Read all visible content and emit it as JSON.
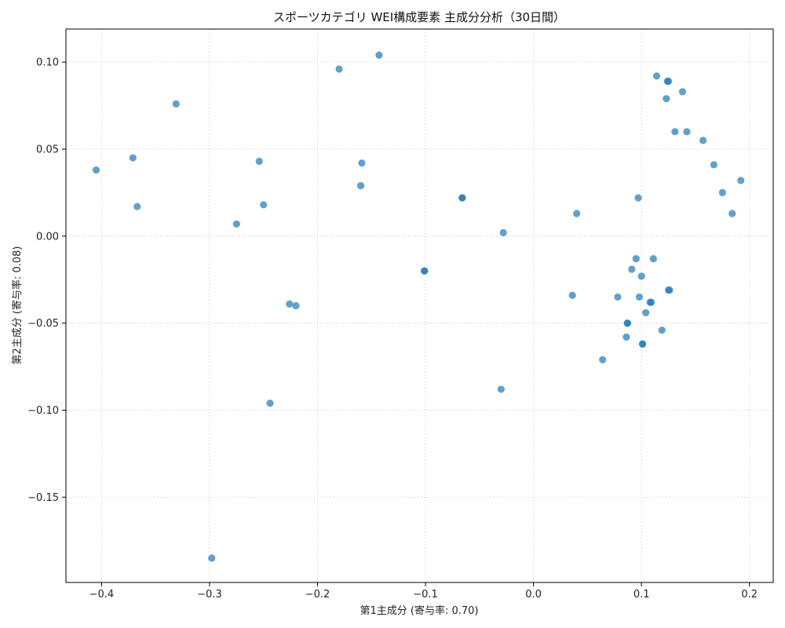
{
  "chart_data": {
    "type": "scatter",
    "title": "スポーツカテゴリ WEI構成要素 主成分分析（30日間）",
    "xlabel": "第1主成分 (寄与率: 0.70)",
    "ylabel": "第2主成分 (寄与率: 0.08)",
    "xlim": [
      -0.433,
      0.222
    ],
    "ylim": [
      -0.199,
      0.119
    ],
    "xticks": [
      -0.4,
      -0.3,
      -0.2,
      -0.1,
      0.0,
      0.1,
      0.2
    ],
    "xtick_labels": [
      "−0.4",
      "−0.3",
      "−0.2",
      "−0.1",
      "0.0",
      "0.1",
      "0.2"
    ],
    "yticks": [
      -0.15,
      -0.1,
      -0.05,
      0.0,
      0.05,
      0.1
    ],
    "ytick_labels": [
      "−0.15",
      "−0.10",
      "−0.05",
      "0.00",
      "0.05",
      "0.10"
    ],
    "grid": true,
    "marker_color": "#1f77b4",
    "marker_alpha": 0.7,
    "points": [
      {
        "x": -0.405,
        "y": 0.038
      },
      {
        "x": -0.371,
        "y": 0.045
      },
      {
        "x": -0.367,
        "y": 0.017
      },
      {
        "x": -0.331,
        "y": 0.076
      },
      {
        "x": -0.298,
        "y": -0.185
      },
      {
        "x": -0.275,
        "y": 0.007
      },
      {
        "x": -0.254,
        "y": 0.043
      },
      {
        "x": -0.25,
        "y": 0.018
      },
      {
        "x": -0.244,
        "y": -0.096
      },
      {
        "x": -0.226,
        "y": -0.039
      },
      {
        "x": -0.22,
        "y": -0.04
      },
      {
        "x": -0.18,
        "y": 0.096
      },
      {
        "x": -0.159,
        "y": 0.042
      },
      {
        "x": -0.16,
        "y": 0.029
      },
      {
        "x": -0.143,
        "y": 0.104
      },
      {
        "x": -0.101,
        "y": -0.02
      },
      {
        "x": -0.101,
        "y": -0.02
      },
      {
        "x": -0.066,
        "y": 0.022
      },
      {
        "x": -0.066,
        "y": 0.022
      },
      {
        "x": -0.03,
        "y": -0.088
      },
      {
        "x": -0.028,
        "y": 0.002
      },
      {
        "x": 0.036,
        "y": -0.034
      },
      {
        "x": 0.04,
        "y": 0.013
      },
      {
        "x": 0.064,
        "y": -0.071
      },
      {
        "x": 0.078,
        "y": -0.035
      },
      {
        "x": 0.086,
        "y": -0.058
      },
      {
        "x": 0.087,
        "y": -0.05
      },
      {
        "x": 0.087,
        "y": -0.05
      },
      {
        "x": 0.091,
        "y": -0.019
      },
      {
        "x": 0.095,
        "y": -0.013
      },
      {
        "x": 0.097,
        "y": 0.022
      },
      {
        "x": 0.098,
        "y": -0.035
      },
      {
        "x": 0.1,
        "y": -0.023
      },
      {
        "x": 0.101,
        "y": -0.062
      },
      {
        "x": 0.101,
        "y": -0.062
      },
      {
        "x": 0.104,
        "y": -0.044
      },
      {
        "x": 0.108,
        "y": -0.038
      },
      {
        "x": 0.109,
        "y": -0.038
      },
      {
        "x": 0.111,
        "y": -0.013
      },
      {
        "x": 0.114,
        "y": 0.092
      },
      {
        "x": 0.119,
        "y": -0.054
      },
      {
        "x": 0.123,
        "y": 0.079
      },
      {
        "x": 0.124,
        "y": 0.089
      },
      {
        "x": 0.125,
        "y": 0.089
      },
      {
        "x": 0.125,
        "y": -0.031
      },
      {
        "x": 0.126,
        "y": -0.031
      },
      {
        "x": 0.131,
        "y": 0.06
      },
      {
        "x": 0.138,
        "y": 0.083
      },
      {
        "x": 0.142,
        "y": 0.06
      },
      {
        "x": 0.157,
        "y": 0.055
      },
      {
        "x": 0.167,
        "y": 0.041
      },
      {
        "x": 0.175,
        "y": 0.025
      },
      {
        "x": 0.184,
        "y": 0.013
      },
      {
        "x": 0.192,
        "y": 0.032
      }
    ]
  }
}
